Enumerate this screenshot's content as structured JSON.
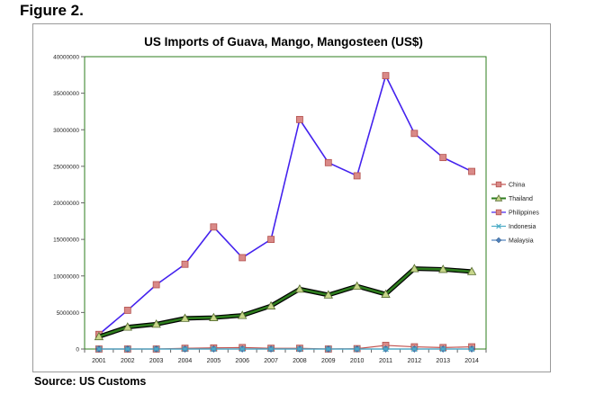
{
  "figure_label": "Figure 2.",
  "source_text": "Source:  US Customs",
  "chart_data": {
    "type": "line",
    "title": "US Imports of Guava, Mango, Mangosteen (US$)",
    "xlabel": "",
    "ylabel": "",
    "categories": [
      "2001",
      "2002",
      "2003",
      "2004",
      "2005",
      "2006",
      "2007",
      "2008",
      "2009",
      "2010",
      "2011",
      "2012",
      "2013",
      "2014"
    ],
    "ylim": [
      0,
      40000000
    ],
    "yticks": [
      0,
      5000000,
      10000000,
      15000000,
      20000000,
      25000000,
      30000000,
      35000000,
      40000000
    ],
    "ytick_labels": [
      "0",
      "5000000",
      "10000000",
      "15000000",
      "20000000",
      "25000000",
      "30000000",
      "35000000",
      "40000000"
    ],
    "grid": false,
    "legend_position": "right",
    "series": [
      {
        "name": "China",
        "color": "#c0504d",
        "marker": "square",
        "values": [
          0,
          0,
          0,
          100000,
          150000,
          200000,
          100000,
          100000,
          0,
          50000,
          500000,
          300000,
          200000,
          300000
        ]
      },
      {
        "name": "Thailand",
        "color": "#2e7d1e",
        "marker": "triangle",
        "values": [
          1700000,
          3000000,
          3400000,
          4200000,
          4300000,
          4600000,
          5900000,
          8200000,
          7400000,
          8600000,
          7500000,
          11000000,
          10900000,
          10600000
        ]
      },
      {
        "name": "Philippines",
        "color": "#4422ee",
        "marker": "square",
        "values": [
          2000000,
          5300000,
          8800000,
          11600000,
          16700000,
          12500000,
          15000000,
          31400000,
          25500000,
          23700000,
          37400000,
          29500000,
          26200000,
          24300000
        ]
      },
      {
        "name": "Indonesia",
        "color": "#4bacc6",
        "marker": "x",
        "values": [
          0,
          0,
          0,
          0,
          0,
          0,
          0,
          0,
          0,
          0,
          0,
          0,
          0,
          0
        ]
      },
      {
        "name": "Malaysia",
        "color": "#4f81bd",
        "marker": "diamond",
        "values": [
          0,
          0,
          0,
          0,
          0,
          0,
          0,
          0,
          0,
          0,
          0,
          0,
          0,
          0
        ]
      }
    ]
  }
}
